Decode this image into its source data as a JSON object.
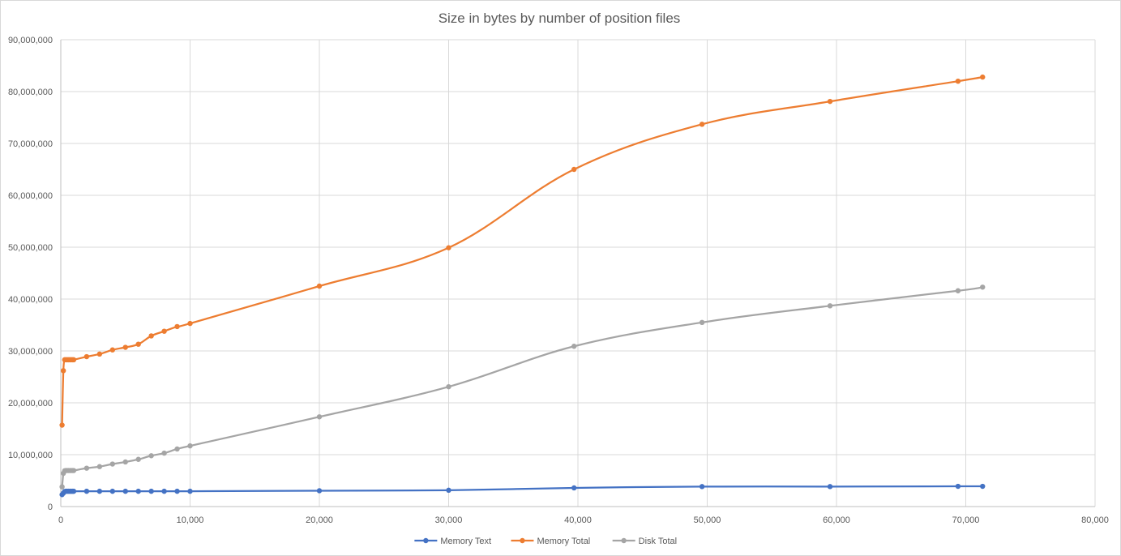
{
  "chart_data": {
    "type": "line",
    "title": "Size in bytes by number of position files",
    "xlabel": "",
    "ylabel": "",
    "xlim": [
      0,
      80000
    ],
    "ylim": [
      0,
      90000000
    ],
    "x_ticks": [
      0,
      10000,
      20000,
      30000,
      40000,
      50000,
      60000,
      70000,
      80000
    ],
    "x_tick_labels": [
      "0",
      "10,000",
      "20,000",
      "30,000",
      "40,000",
      "50,000",
      "60,000",
      "70,000",
      "80,000"
    ],
    "y_ticks": [
      0,
      10000000,
      20000000,
      30000000,
      40000000,
      50000000,
      60000000,
      70000000,
      80000000,
      90000000
    ],
    "y_tick_labels": [
      "0",
      "10,000,000",
      "20,000,000",
      "30,000,000",
      "40,000,000",
      "50,000,000",
      "60,000,000",
      "70,000,000",
      "80,000,000",
      "90,000,000"
    ],
    "grid": true,
    "legend_position": "bottom",
    "series": [
      {
        "name": "Memory Text",
        "color": "#4472c4",
        "points": [
          [
            100,
            2300000
          ],
          [
            200,
            2600000
          ],
          [
            300,
            2900000
          ],
          [
            400,
            2950000
          ],
          [
            500,
            2950000
          ],
          [
            600,
            2950000
          ],
          [
            700,
            2950000
          ],
          [
            800,
            2950000
          ],
          [
            900,
            2950000
          ],
          [
            1000,
            2950000
          ],
          [
            2000,
            2950000
          ],
          [
            3000,
            2950000
          ],
          [
            4000,
            2950000
          ],
          [
            5000,
            2950000
          ],
          [
            6000,
            2950000
          ],
          [
            7000,
            2950000
          ],
          [
            8000,
            2950000
          ],
          [
            9000,
            2950000
          ],
          [
            10000,
            2950000
          ],
          [
            20000,
            3050000
          ],
          [
            30000,
            3150000
          ],
          [
            39700,
            3600000
          ],
          [
            49600,
            3850000
          ],
          [
            59500,
            3850000
          ],
          [
            69400,
            3900000
          ],
          [
            71300,
            3900000
          ]
        ]
      },
      {
        "name": "Memory Total",
        "color": "#ed7d31",
        "points": [
          [
            100,
            15700000
          ],
          [
            200,
            26200000
          ],
          [
            300,
            28300000
          ],
          [
            400,
            28300000
          ],
          [
            500,
            28300000
          ],
          [
            600,
            28300000
          ],
          [
            700,
            28300000
          ],
          [
            800,
            28300000
          ],
          [
            900,
            28300000
          ],
          [
            1000,
            28300000
          ],
          [
            2000,
            28900000
          ],
          [
            3000,
            29400000
          ],
          [
            4000,
            30200000
          ],
          [
            5000,
            30700000
          ],
          [
            6000,
            31300000
          ],
          [
            7000,
            32900000
          ],
          [
            8000,
            33800000
          ],
          [
            9000,
            34700000
          ],
          [
            10000,
            35300000
          ],
          [
            20000,
            42500000
          ],
          [
            30000,
            49900000
          ],
          [
            39700,
            65000000
          ],
          [
            49600,
            73700000
          ],
          [
            59500,
            78100000
          ],
          [
            69400,
            82000000
          ],
          [
            71300,
            82800000
          ]
        ]
      },
      {
        "name": "Disk Total",
        "color": "#a5a5a5",
        "points": [
          [
            100,
            3800000
          ],
          [
            200,
            6400000
          ],
          [
            300,
            6900000
          ],
          [
            400,
            6950000
          ],
          [
            500,
            6950000
          ],
          [
            600,
            6950000
          ],
          [
            700,
            6950000
          ],
          [
            800,
            6950000
          ],
          [
            900,
            6950000
          ],
          [
            1000,
            6950000
          ],
          [
            2000,
            7400000
          ],
          [
            3000,
            7700000
          ],
          [
            4000,
            8200000
          ],
          [
            5000,
            8600000
          ],
          [
            6000,
            9100000
          ],
          [
            7000,
            9800000
          ],
          [
            8000,
            10300000
          ],
          [
            9000,
            11100000
          ],
          [
            10000,
            11700000
          ],
          [
            20000,
            17300000
          ],
          [
            30000,
            23100000
          ],
          [
            39700,
            30900000
          ],
          [
            49600,
            35500000
          ],
          [
            59500,
            38700000
          ],
          [
            69400,
            41600000
          ],
          [
            71300,
            42300000
          ]
        ]
      }
    ]
  }
}
